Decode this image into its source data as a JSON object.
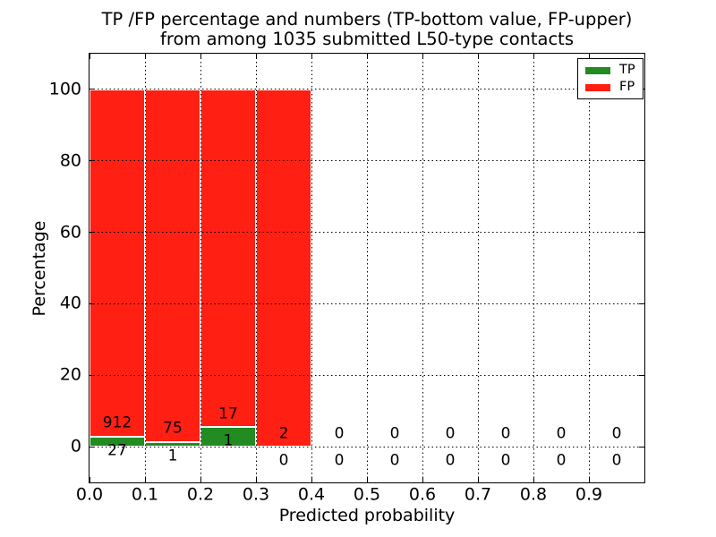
{
  "figure": {
    "title_line1": "TP /FP percentage and numbers (TP-bottom value, FP-upper)",
    "title_line2": "from among 1035 submitted L50-type contacts",
    "background": "#ffffff"
  },
  "chart_data": {
    "type": "bar",
    "stacked": true,
    "title": "TP /FP percentage and numbers (TP-bottom value, FP-upper)\nfrom among 1035 submitted L50-type contacts",
    "xlabel": "Predicted probability",
    "ylabel": "Percentage",
    "xlim": [
      0.0,
      1.0
    ],
    "ylim": [
      -10,
      110
    ],
    "x_ticks": [
      0.0,
      0.1,
      0.2,
      0.3,
      0.4,
      0.5,
      0.6,
      0.7,
      0.8,
      0.9
    ],
    "x_tick_labels": [
      "0.0",
      "0.1",
      "0.2",
      "0.3",
      "0.4",
      "0.5",
      "0.6",
      "0.7",
      "0.8",
      "0.9"
    ],
    "y_ticks": [
      0,
      20,
      40,
      60,
      80,
      100
    ],
    "y_tick_labels": [
      "0",
      "20",
      "40",
      "60",
      "80",
      "100"
    ],
    "grid": {
      "visible": true,
      "style": "dotted",
      "color": "#000000"
    },
    "bin_edges": [
      0.0,
      0.1,
      0.2,
      0.3,
      0.4,
      0.5,
      0.6,
      0.7,
      0.8,
      0.9,
      1.0
    ],
    "series": [
      {
        "name": "TP",
        "color": "#228b22",
        "counts": [
          27,
          1,
          1,
          0,
          0,
          0,
          0,
          0,
          0,
          0
        ]
      },
      {
        "name": "FP",
        "color": "#ff1f13",
        "counts": [
          912,
          75,
          17,
          2,
          0,
          0,
          0,
          0,
          0,
          0
        ]
      }
    ],
    "bar_percentages": {
      "tp": [
        2.88,
        1.32,
        5.56,
        0,
        0,
        0,
        0,
        0,
        0,
        0
      ],
      "fp": [
        97.12,
        98.68,
        94.44,
        100,
        0,
        0,
        0,
        0,
        0,
        0
      ]
    },
    "total_submitted": 1035,
    "legend": {
      "position": "upper right",
      "entries": [
        {
          "label": "TP",
          "color": "#228b22"
        },
        {
          "label": "FP",
          "color": "#ff1f13"
        }
      ]
    }
  }
}
